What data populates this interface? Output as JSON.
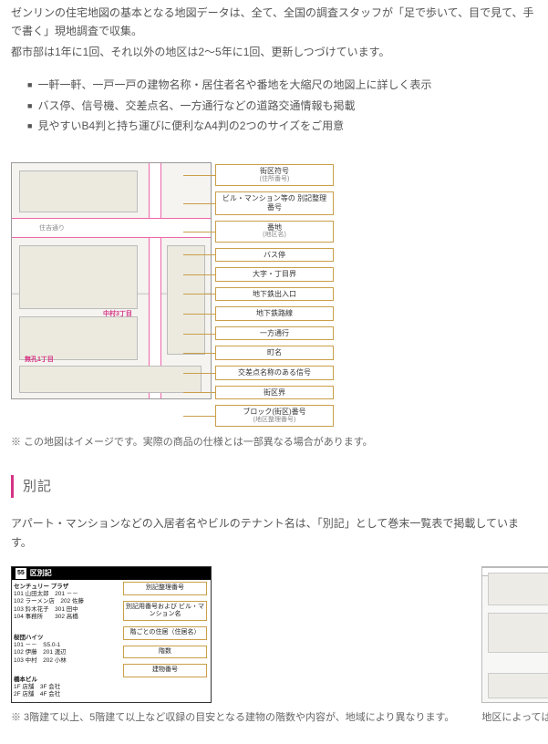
{
  "intro": {
    "p1": "ゼンリンの住宅地図の基本となる地図データは、全て、全国の調査スタッフが「足で歩いて、目で見て、手で書く」現地調査で収集。",
    "p2": "都市部は1年に1回、それ以外の地区は2〜5年に1回、更新しつづけています。"
  },
  "features": [
    "一軒一軒、一戸一戸の建物名称・居住者名や番地を大縮尺の地図上に詳しく表示",
    "バス停、信号機、交差点名、一方通行などの道路交通情報も掲載",
    "見やすいB4判と持ち運びに便利なA4判の2つのサイズをご用意"
  ],
  "map": {
    "road_label": "住吉通り",
    "pink1": "無孔1丁目",
    "pink2": "中村3丁目",
    "note": "※ この地図はイメージです。実際の商品の仕様とは一部異なる場合があります。"
  },
  "legend": [
    {
      "t": "街区符号",
      "s": "(住所番号)"
    },
    {
      "t": "ビル・マンション等の\n別記整理番号",
      "s": ""
    },
    {
      "t": "番地",
      "s": "(地区名)"
    },
    {
      "t": "バス停",
      "s": ""
    },
    {
      "t": "大字・丁目界",
      "s": ""
    },
    {
      "t": "地下鉄出入口",
      "s": ""
    },
    {
      "t": "地下鉄路線",
      "s": ""
    },
    {
      "t": "一方通行",
      "s": ""
    },
    {
      "t": "町名",
      "s": ""
    },
    {
      "t": "交差点名称のある信号",
      "s": ""
    },
    {
      "t": "街区界",
      "s": ""
    },
    {
      "t": "ブロック(街区)番号",
      "s": "(地区整理番号)"
    }
  ],
  "section": {
    "heading": "別記",
    "p": "アパート・マンションなどの入居者名やビルのテナント名は、「別記」として巻末一覧表で掲載しています。"
  },
  "kubetsu": {
    "header_num": "55",
    "header_txt": "区別記",
    "left_title1": "センチュリー\nプラザ",
    "left_title2": "桜団ハイツ",
    "left_title3": "橋本ビル",
    "right_boxes": [
      "別記整理番号",
      "別記用番号および\nビル・マンション名",
      "階ごとの住居（住居名）",
      "階数",
      "建物番号"
    ],
    "caption": "※ 3階建て以上、5階建て以上など収録の目安となる建物の階数や内容が、地域により異なります。"
  },
  "station": {
    "caption": "地区によっては、地下鉄の駅構内、地下街も掲載しています。"
  },
  "colors": {
    "accent": "#d63384",
    "legend_border": "#c99f4a"
  }
}
